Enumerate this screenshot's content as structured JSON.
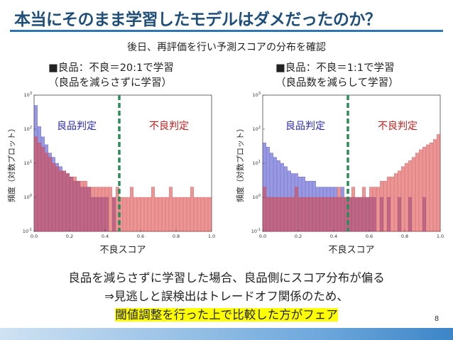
{
  "slide": {
    "title": "本当にそのまま学習したモデルはダメだったのか？",
    "subtitle": "後日、再評価を行い予測スコアの分布を確認",
    "left_condition": [
      "■良品：不良＝20:1で学習",
      "（良品を減らさずに学習）"
    ],
    "right_condition": [
      "■良品：不良＝1:1で学習",
      "（良品数を減らして学習）"
    ],
    "conclusion": [
      "良品を減らさずに学習した場合、良品側にスコア分布が偏る",
      "⇒見逃しと誤検出はトレードオフ関係のため、",
      "閾値調整を行った上で比較した方がフェア"
    ],
    "page_number": "8"
  },
  "colors": {
    "good": "#4545c8",
    "defect": "#d84040",
    "overlap": "#8b1a3a",
    "threshold": "#2e8b57",
    "title": "#1f4e79"
  },
  "chart_data": [
    {
      "type": "bar",
      "log_scale_y": true,
      "xlim": [
        0.0,
        1.0
      ],
      "ylim": [
        0.1,
        1000
      ],
      "xticks": [
        "0.0",
        "0.2",
        "0.4",
        "0.6",
        "0.8",
        "1.0"
      ],
      "yticks": [
        "10^-1",
        "10^0",
        "10^1",
        "10^2",
        "10^3"
      ],
      "xlabel": "不良スコア",
      "ylabel": "頻度（対数プロット）",
      "threshold": 0.48,
      "annotations": [
        "良品判定",
        "不良判定"
      ],
      "bin_centers": [
        0.01,
        0.03,
        0.05,
        0.07,
        0.09,
        0.11,
        0.13,
        0.15,
        0.17,
        0.19,
        0.21,
        0.23,
        0.25,
        0.27,
        0.29,
        0.31,
        0.33,
        0.35,
        0.37,
        0.39,
        0.41,
        0.43,
        0.45,
        0.47,
        0.49,
        0.51,
        0.53,
        0.55,
        0.57,
        0.59,
        0.61,
        0.63,
        0.65,
        0.67,
        0.69,
        0.71,
        0.73,
        0.75,
        0.77,
        0.79,
        0.81,
        0.83,
        0.85,
        0.87,
        0.89,
        0.91,
        0.93,
        0.95,
        0.97,
        0.99
      ],
      "series": [
        {
          "values": [
            500,
            120,
            60,
            35,
            20,
            15,
            10,
            8,
            6,
            5,
            4,
            3,
            3,
            2,
            2,
            2,
            1,
            1,
            1,
            1,
            1,
            0,
            1,
            0,
            0,
            0,
            0,
            0,
            0,
            0,
            0,
            0,
            0,
            0,
            0,
            0,
            0,
            0,
            0,
            0,
            0,
            0,
            0,
            0,
            0,
            0,
            0,
            0,
            0,
            0
          ]
        },
        {
          "values": [
            60,
            40,
            30,
            20,
            15,
            10,
            8,
            6,
            6,
            5,
            4,
            4,
            3,
            3,
            3,
            2,
            2,
            2,
            2,
            2,
            2,
            2,
            1,
            2,
            1,
            1,
            1,
            2,
            1,
            1,
            1,
            1,
            1,
            2,
            1,
            1,
            1,
            1,
            2,
            1,
            1,
            1,
            1,
            1,
            2,
            1,
            1,
            1,
            1,
            1
          ]
        }
      ]
    },
    {
      "type": "bar",
      "log_scale_y": true,
      "xlim": [
        0.0,
        1.0
      ],
      "ylim": [
        0.1,
        1000
      ],
      "xticks": [
        "0.0",
        "0.2",
        "0.4",
        "0.6",
        "0.8",
        "1.0"
      ],
      "yticks": [
        "10^-1",
        "10^0",
        "10^1",
        "10^2",
        "10^3"
      ],
      "xlabel": "不良スコア",
      "ylabel": "頻度（対数プロット）",
      "threshold": 0.48,
      "annotations": [
        "良品判定",
        "不良判定"
      ],
      "bin_centers": [
        0.01,
        0.03,
        0.05,
        0.07,
        0.09,
        0.11,
        0.13,
        0.15,
        0.17,
        0.19,
        0.21,
        0.23,
        0.25,
        0.27,
        0.29,
        0.31,
        0.33,
        0.35,
        0.37,
        0.39,
        0.41,
        0.43,
        0.45,
        0.47,
        0.49,
        0.51,
        0.53,
        0.55,
        0.57,
        0.59,
        0.61,
        0.63,
        0.65,
        0.67,
        0.69,
        0.71,
        0.73,
        0.75,
        0.77,
        0.79,
        0.81,
        0.83,
        0.85,
        0.87,
        0.89,
        0.91,
        0.93,
        0.95,
        0.97,
        0.99
      ],
      "series": [
        {
          "values": [
            40,
            30,
            20,
            15,
            12,
            10,
            8,
            6,
            5,
            5,
            4,
            4,
            3,
            3,
            3,
            2,
            2,
            2,
            2,
            2,
            2,
            1,
            2,
            1,
            1,
            1,
            1,
            1,
            1,
            1,
            1,
            1,
            0,
            1,
            0,
            1,
            0,
            0,
            1,
            0,
            0,
            1,
            0,
            0,
            0,
            1,
            0,
            0,
            0,
            0
          ]
        },
        {
          "values": [
            2,
            1,
            1,
            1,
            1,
            1,
            1,
            1,
            1,
            2,
            1,
            1,
            1,
            1,
            1,
            1,
            1,
            1,
            1,
            1,
            1,
            2,
            1,
            1,
            1,
            2,
            1,
            1,
            2,
            1,
            2,
            2,
            2,
            3,
            3,
            4,
            4,
            5,
            6,
            8,
            10,
            12,
            15,
            20,
            25,
            30,
            35,
            40,
            50,
            70
          ]
        }
      ]
    }
  ]
}
